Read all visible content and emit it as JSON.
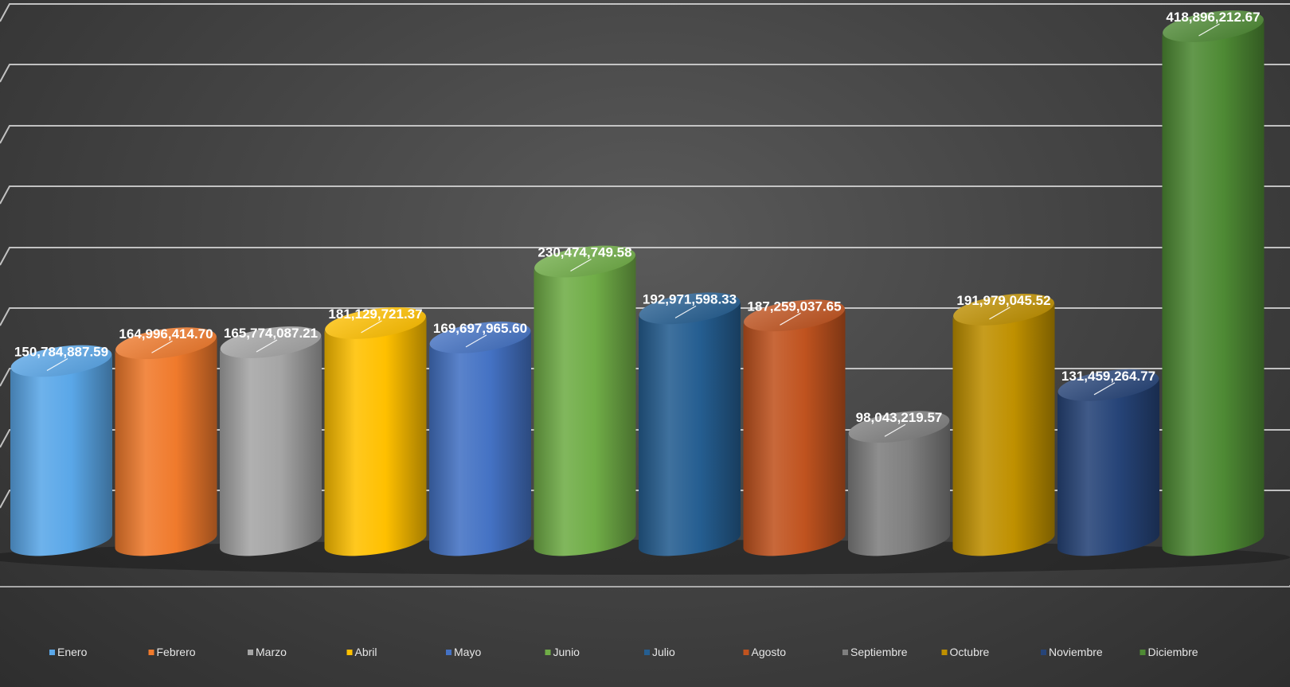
{
  "chart_data": {
    "type": "bar",
    "style": "3d-cylinder",
    "categories": [
      "Enero",
      "Febrero",
      "Marzo",
      "Abril",
      "Mayo",
      "Junio",
      "Julio",
      "Agosto",
      "Septiembre",
      "Octubre",
      "Noviembre",
      "Diciembre"
    ],
    "values": [
      150784887.59,
      164996414.7,
      165774087.21,
      181129721.37,
      169697965.6,
      230474749.58,
      192971598.33,
      187259037.65,
      98043219.57,
      191979045.52,
      131459264.77,
      418896212.67
    ],
    "value_labels": [
      "150,784,887.59",
      "164,996,414.70",
      "165,774,087.21",
      "181,129,721.37",
      "169,697,965.60",
      "230,474,749.58",
      "192,971,598.33",
      "187,259,037.65",
      "98,043,219.57",
      "191,979,045.52",
      "131,459,264.77",
      "418,896,212.67"
    ],
    "colors": [
      "#5aa7e8",
      "#f07a2c",
      "#a5a5a5",
      "#ffc000",
      "#4472c4",
      "#70ad47",
      "#255e91",
      "#c0531f",
      "#7f7f7f",
      "#bf9000",
      "#264478",
      "#4e8a34"
    ],
    "ylim": [
      0,
      450000000
    ],
    "grid": true,
    "legend_position": "bottom"
  }
}
